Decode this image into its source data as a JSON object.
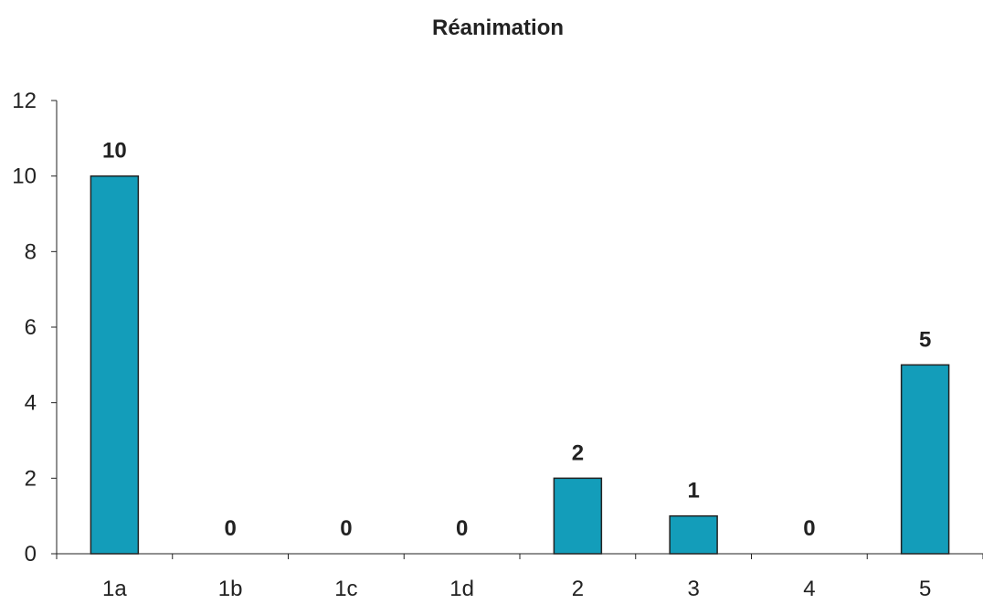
{
  "chart_data": {
    "type": "bar",
    "title": "Réanimation",
    "xlabel": "",
    "ylabel": "",
    "categories": [
      "1a",
      "1b",
      "1c",
      "1d",
      "2",
      "3",
      "4",
      "5"
    ],
    "values": [
      10,
      0,
      0,
      0,
      2,
      1,
      0,
      5
    ],
    "data_labels": [
      "10",
      "0",
      "0",
      "0",
      "2",
      "1",
      "0",
      "5"
    ],
    "ylim": [
      0,
      12
    ],
    "yticks": [
      "0",
      "2",
      "4",
      "6",
      "8",
      "10",
      "12"
    ],
    "grid": false,
    "legend": "none",
    "bar_color": "#139DBA"
  }
}
